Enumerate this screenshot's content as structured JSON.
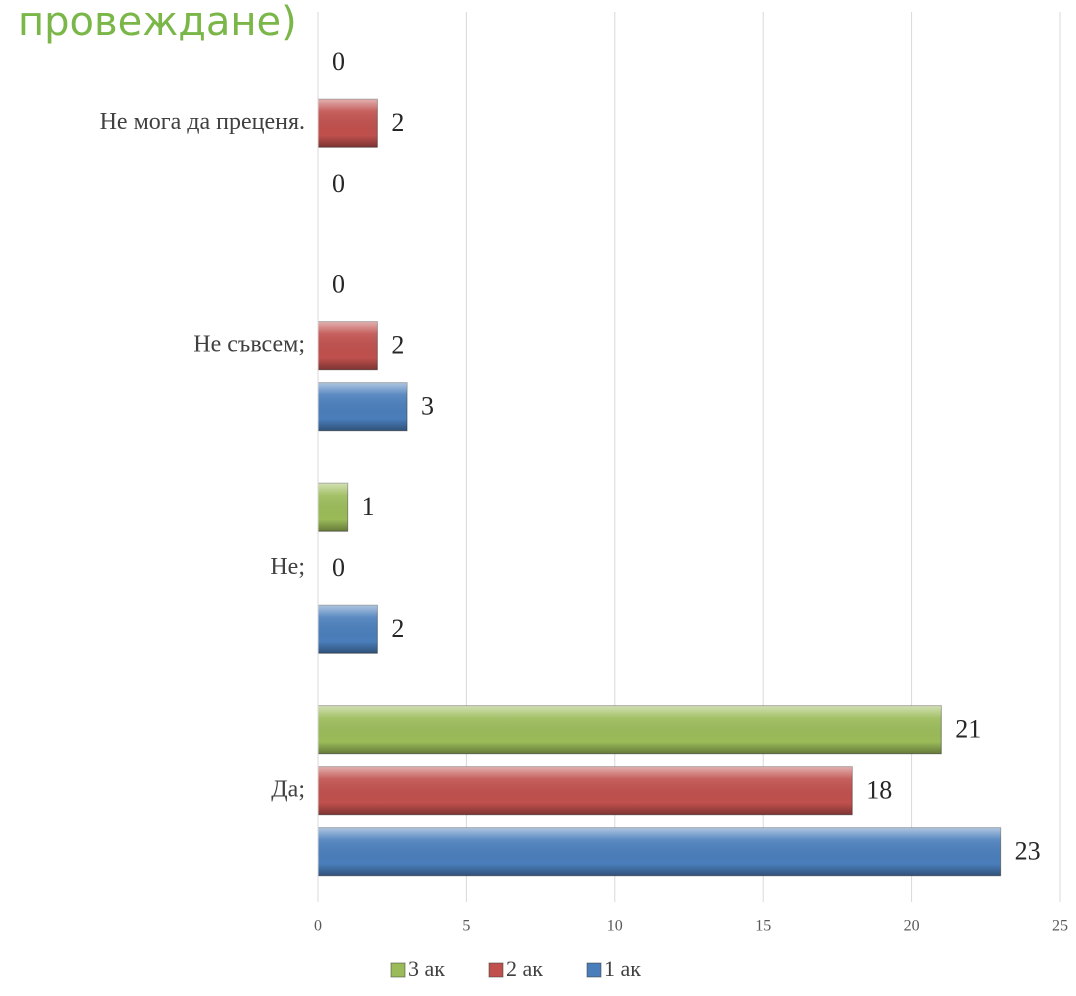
{
  "chart_data": {
    "type": "bar",
    "orientation": "horizontal",
    "title": "провеждане)",
    "categories": [
      "Да;",
      "Не;",
      "Не съвсем;",
      "Не мога да преценя."
    ],
    "series": [
      {
        "name": "1 ак",
        "color": "#4a7ebb",
        "values": [
          23,
          2,
          3,
          0
        ]
      },
      {
        "name": "2 ак",
        "color": "#c0504d",
        "values": [
          18,
          0,
          2,
          2
        ]
      },
      {
        "name": "3 ак",
        "color": "#9bbb59",
        "values": [
          21,
          1,
          0,
          0
        ]
      }
    ],
    "xlim": [
      0,
      25
    ],
    "xticks": [
      0,
      5,
      10,
      15,
      20,
      25
    ],
    "grid": true,
    "legend": "bottom"
  }
}
